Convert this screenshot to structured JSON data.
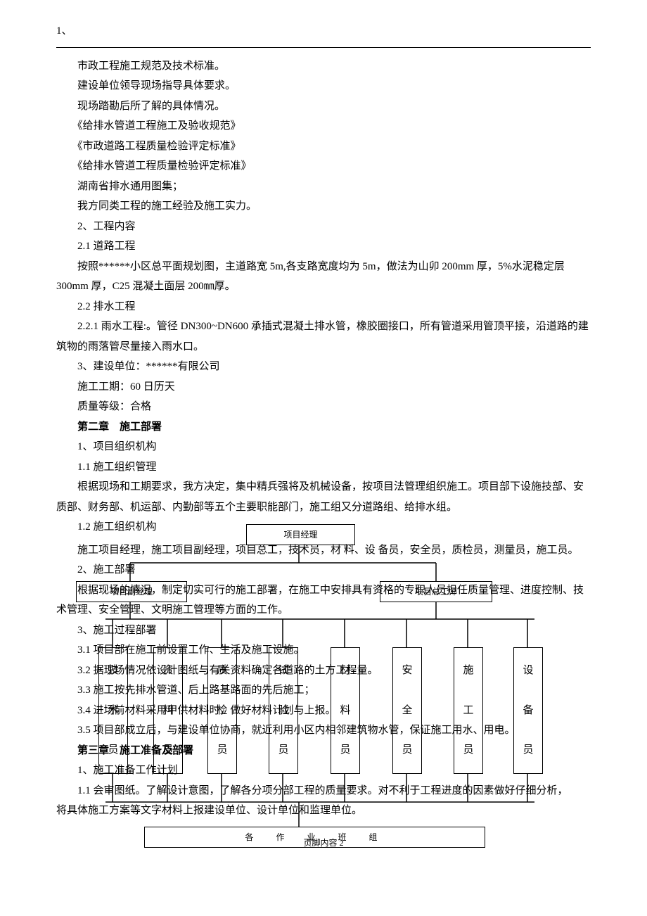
{
  "header_num": "1、",
  "lines": [
    "市政工程施工规范及技术标准。",
    "建设单位领导现场指导具体要求。",
    "现场踏勘后所了解的具体情况。",
    "《给排水管道工程施工及验收规范》",
    "《市政道路工程质量检验评定标准》",
    "《给排水管道工程质量检验评定标准》",
    "湖南省排水通用图集；",
    "我方同类工程的施工经验及施工实力。",
    "2、工程内容",
    "2.1 道路工程"
  ],
  "para_road": "按照******小区总平面规划图，主道路宽 5m,各支路宽度均为 5m，做法为山卯 200mm 厚，5%水泥稳定层 300mm 厚，C25 混凝土面层 200㎜厚。",
  "line_22": "2.2 排水工程",
  "para_rain": "2.2.1 雨水工程:。管径 DN300~DN600 承插式混凝土排水管，橡胶圈接口，所有管道采用管顶平接，沿道路的建筑物的雨落管尽量接入雨水口。",
  "line_build": "3、建设单位：******有限公司",
  "line_period": "施工工期：60 日历天",
  "line_quality": "质量等级：合格",
  "ch2_title": "第二章　施工部署",
  "line_org": "1、项目组织机构",
  "line_mgmt": "1.1 施工组织管理",
  "para_mgmt": "根据现场和工期要求，我方决定，集中精兵强将及机械设备，按项目法管理组织施工。项目部下设施技部、安质部、财务部、机运部、内勤部等五个主要职能部门，施工组又分道路组、给排水组。",
  "line_struct": "1.2 施工组织机构",
  "para_struct": "施工项目经理，施工项目副经理，项目总工，技术员，材 料、设 备员，安全员，质检员，测量员，施工员。",
  "line_deploy": "2、施工部署",
  "para_deploy": "根据现场的情况，制定切实可行的施工部署，在施工中安排具有资格的专职人员担任质量管理、进度控制、技术管理、安全管理、文明施工管理等方面的工作。",
  "line_process": "3、施工过程部署",
  "line_31": "3.1 项目部在施工前设置工作、生活及施工设施。",
  "line_32": "3.2 据现场情况依设计图纸与有关资料确定各道路的土方工程量。",
  "line_33": "3.3 施工按先排水管道、后上路基路面的先后施工；",
  "line_34": "3.4 进场前材料采用甲供材料时，做好材料计划与上报。",
  "line_35": "3.5 项目部成立后，与建设单位协商，就近利用小区内相邻建筑物水管，保证施工用水、用电。",
  "ch3_title": "第三章　施工准备及部署",
  "line_prep": "1、施工准备工作计划",
  "para_prep": "1.1 会审图纸。了解设计意图，了解各分项分部工程的质量要求。对不利于工程进度的因素做好仔细分析，　　　　　　　　　　　　　　　　　　　　　　　　　　　　　　　　　　　将具体施工方案等文字材料上报建设单位、设计单位和监理单位。",
  "footer": "页脚内容 2",
  "diagram": {
    "top_box": "项目经理",
    "mid_left": "项目副经理",
    "mid_right": "项目总工师",
    "roles": [
      {
        "l1": "技",
        "l2": "术",
        "l3": "员"
      },
      {
        "l1": "资",
        "l2": "料",
        "l3": "员"
      },
      {
        "l1": "质",
        "l2": "检",
        "l3": "员"
      },
      {
        "l1": "试",
        "l2": "验",
        "l3": "员"
      },
      {
        "l1": "材",
        "l2": "料",
        "l3": "员"
      },
      {
        "l1": "安",
        "l2": "全",
        "l3": "员"
      },
      {
        "l1": "施",
        "l2": "工",
        "l3": "员"
      },
      {
        "l1": "设",
        "l2": "备",
        "l3": "员"
      }
    ],
    "bottom": "各　作　业　班　组",
    "colors": {
      "line": "#000000",
      "bg": "#ffffff"
    },
    "box_stroke_width": 1.5
  }
}
